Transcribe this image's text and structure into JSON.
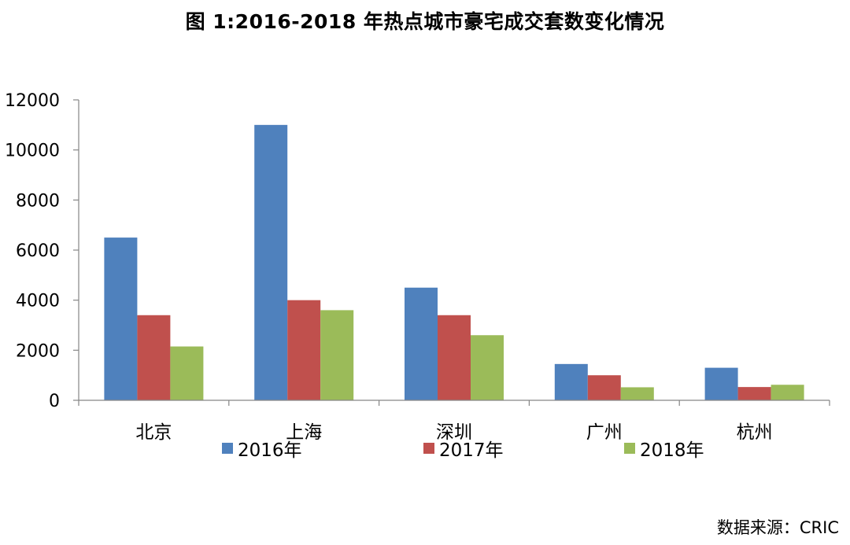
{
  "chart_data": {
    "type": "bar",
    "title": "图 1:2016-2018 年热点城市豪宅成交套数变化情况",
    "categories": [
      "北京",
      "上海",
      "深圳",
      "广州",
      "杭州"
    ],
    "series": [
      {
        "name": "2016年",
        "color": "#4F81BD",
        "values": [
          6500,
          11000,
          4500,
          1450,
          1300
        ]
      },
      {
        "name": "2017年",
        "color": "#C0504D",
        "values": [
          3400,
          4000,
          3400,
          1000,
          530
        ]
      },
      {
        "name": "2018年",
        "color": "#9BBB59",
        "values": [
          2150,
          3600,
          2600,
          520,
          620
        ]
      }
    ],
    "y_ticks": [
      "0",
      "2000",
      "4000",
      "6000",
      "8000",
      "10000",
      "12000"
    ],
    "ylim": [
      0,
      12000
    ],
    "xlabel": "",
    "ylabel": "",
    "grid": false,
    "legend_position": "bottom"
  },
  "source_note": "数据来源：CRIC"
}
